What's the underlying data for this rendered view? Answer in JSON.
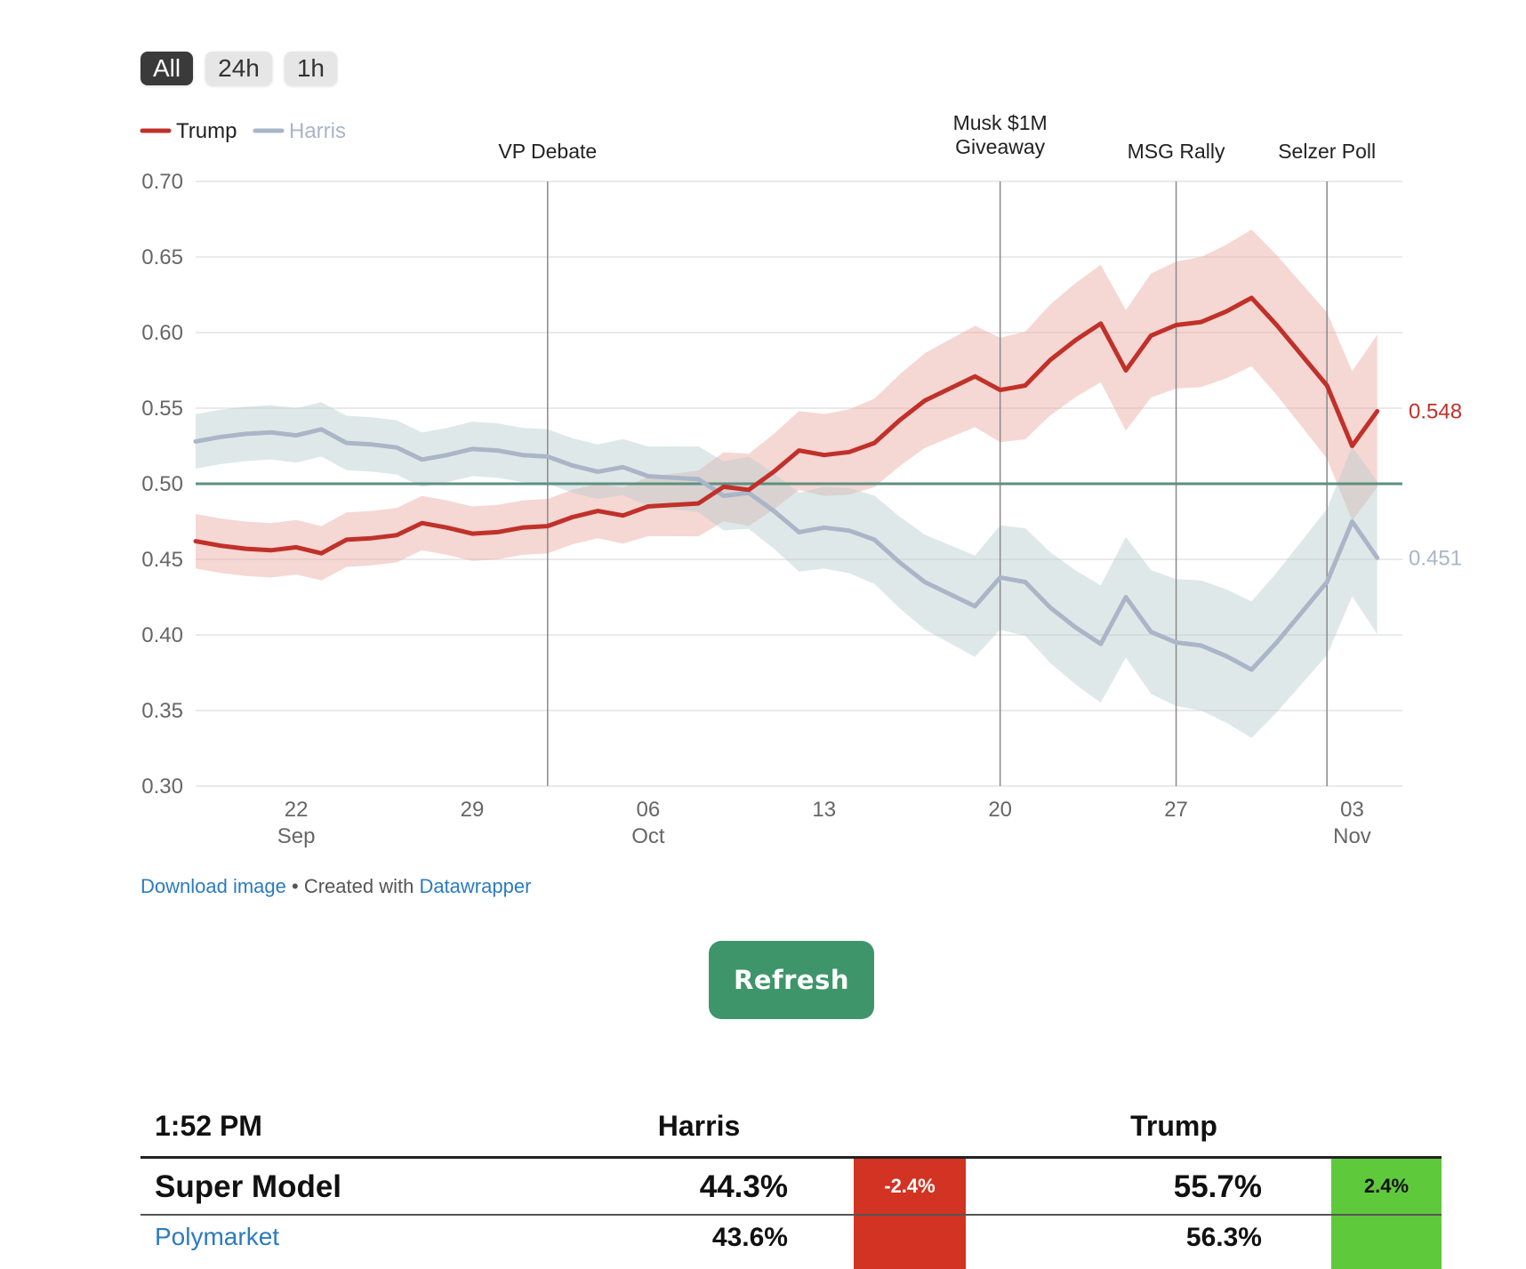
{
  "range_tabs": [
    {
      "label": "All",
      "active": true
    },
    {
      "label": "24h",
      "active": false
    },
    {
      "label": "1h",
      "active": false
    }
  ],
  "chart_data": {
    "type": "line",
    "title": "",
    "xlabel": "",
    "ylabel": "",
    "x_range": [
      "2024-09-18",
      "2024-11-05"
    ],
    "ylim": [
      0.3,
      0.7
    ],
    "yticks": [
      0.3,
      0.35,
      0.4,
      0.45,
      0.5,
      0.55,
      0.6,
      0.65,
      0.7
    ],
    "xticks": [
      {
        "date": "2024-09-22",
        "label": "22",
        "sublabel": "Sep"
      },
      {
        "date": "2024-09-29",
        "label": "29",
        "sublabel": ""
      },
      {
        "date": "2024-10-06",
        "label": "06",
        "sublabel": "Oct"
      },
      {
        "date": "2024-10-13",
        "label": "13",
        "sublabel": ""
      },
      {
        "date": "2024-10-20",
        "label": "20",
        "sublabel": ""
      },
      {
        "date": "2024-10-27",
        "label": "27",
        "sublabel": ""
      },
      {
        "date": "2024-11-03",
        "label": "03",
        "sublabel": "Nov"
      }
    ],
    "grid": true,
    "legend_position": "top-left",
    "reference_line": {
      "y": 0.5,
      "color": "#5e8f7f"
    },
    "annotations": [
      {
        "date": "2024-10-02",
        "label": "VP Debate"
      },
      {
        "date": "2024-10-20",
        "label": "Musk $1M Giveaway"
      },
      {
        "date": "2024-10-27",
        "label": "MSG Rally"
      },
      {
        "date": "2024-11-02",
        "label": "Selzer Poll"
      }
    ],
    "series": [
      {
        "name": "Trump",
        "color": "#c0312a",
        "band_color": "#e8a79f",
        "last_value_label": "0.548",
        "x": [
          "2024-09-18",
          "2024-09-19",
          "2024-09-20",
          "2024-09-21",
          "2024-09-22",
          "2024-09-23",
          "2024-09-24",
          "2024-09-25",
          "2024-09-26",
          "2024-09-27",
          "2024-09-28",
          "2024-09-29",
          "2024-09-30",
          "2024-10-01",
          "2024-10-02",
          "2024-10-03",
          "2024-10-04",
          "2024-10-05",
          "2024-10-06",
          "2024-10-07",
          "2024-10-08",
          "2024-10-09",
          "2024-10-10",
          "2024-10-11",
          "2024-10-12",
          "2024-10-13",
          "2024-10-14",
          "2024-10-15",
          "2024-10-16",
          "2024-10-17",
          "2024-10-18",
          "2024-10-19",
          "2024-10-20",
          "2024-10-21",
          "2024-10-22",
          "2024-10-23",
          "2024-10-24",
          "2024-10-25",
          "2024-10-26",
          "2024-10-27",
          "2024-10-28",
          "2024-10-29",
          "2024-10-30",
          "2024-10-31",
          "2024-11-01",
          "2024-11-02",
          "2024-11-03",
          "2024-11-04"
        ],
        "y": [
          0.462,
          0.459,
          0.457,
          0.456,
          0.458,
          0.454,
          0.463,
          0.464,
          0.466,
          0.474,
          0.471,
          0.467,
          0.468,
          0.471,
          0.472,
          0.478,
          0.482,
          0.479,
          0.485,
          0.486,
          0.487,
          0.498,
          0.496,
          0.508,
          0.522,
          0.519,
          0.521,
          0.527,
          0.542,
          0.555,
          0.563,
          0.571,
          0.562,
          0.565,
          0.582,
          0.595,
          0.606,
          0.575,
          0.598,
          0.605,
          0.607,
          0.614,
          0.623,
          0.605,
          0.585,
          0.565,
          0.525,
          0.548
        ]
      },
      {
        "name": "Harris",
        "color": "#aab5c8",
        "band_color": "#b9cccc",
        "last_value_label": "0.451",
        "x": [
          "2024-09-18",
          "2024-09-19",
          "2024-09-20",
          "2024-09-21",
          "2024-09-22",
          "2024-09-23",
          "2024-09-24",
          "2024-09-25",
          "2024-09-26",
          "2024-09-27",
          "2024-09-28",
          "2024-09-29",
          "2024-09-30",
          "2024-10-01",
          "2024-10-02",
          "2024-10-03",
          "2024-10-04",
          "2024-10-05",
          "2024-10-06",
          "2024-10-07",
          "2024-10-08",
          "2024-10-09",
          "2024-10-10",
          "2024-10-11",
          "2024-10-12",
          "2024-10-13",
          "2024-10-14",
          "2024-10-15",
          "2024-10-16",
          "2024-10-17",
          "2024-10-18",
          "2024-10-19",
          "2024-10-20",
          "2024-10-21",
          "2024-10-22",
          "2024-10-23",
          "2024-10-24",
          "2024-10-25",
          "2024-10-26",
          "2024-10-27",
          "2024-10-28",
          "2024-10-29",
          "2024-10-30",
          "2024-10-31",
          "2024-11-01",
          "2024-11-02",
          "2024-11-03",
          "2024-11-04"
        ],
        "y": [
          0.528,
          0.531,
          0.533,
          0.534,
          0.532,
          0.536,
          0.527,
          0.526,
          0.524,
          0.516,
          0.519,
          0.523,
          0.522,
          0.519,
          0.518,
          0.512,
          0.508,
          0.511,
          0.505,
          0.504,
          0.503,
          0.492,
          0.494,
          0.482,
          0.468,
          0.471,
          0.469,
          0.463,
          0.448,
          0.435,
          0.427,
          0.419,
          0.438,
          0.435,
          0.418,
          0.405,
          0.394,
          0.425,
          0.402,
          0.395,
          0.393,
          0.386,
          0.377,
          0.395,
          0.415,
          0.435,
          0.475,
          0.451
        ]
      }
    ]
  },
  "footer": {
    "download_label": "Download image",
    "separator": " • ",
    "created_with": "Created with ",
    "tool_name": "Datawrapper"
  },
  "refresh_label": "Refresh",
  "results": {
    "time": "1:52 PM",
    "col_harris": "Harris",
    "col_trump": "Trump",
    "rows": [
      {
        "name": "Super Model",
        "harris": "44.3%",
        "harris_change": "-2.4%",
        "trump": "55.7%",
        "trump_change": "2.4%"
      },
      {
        "name": "Polymarket",
        "harris": "43.6%",
        "trump": "56.3%"
      }
    ]
  }
}
